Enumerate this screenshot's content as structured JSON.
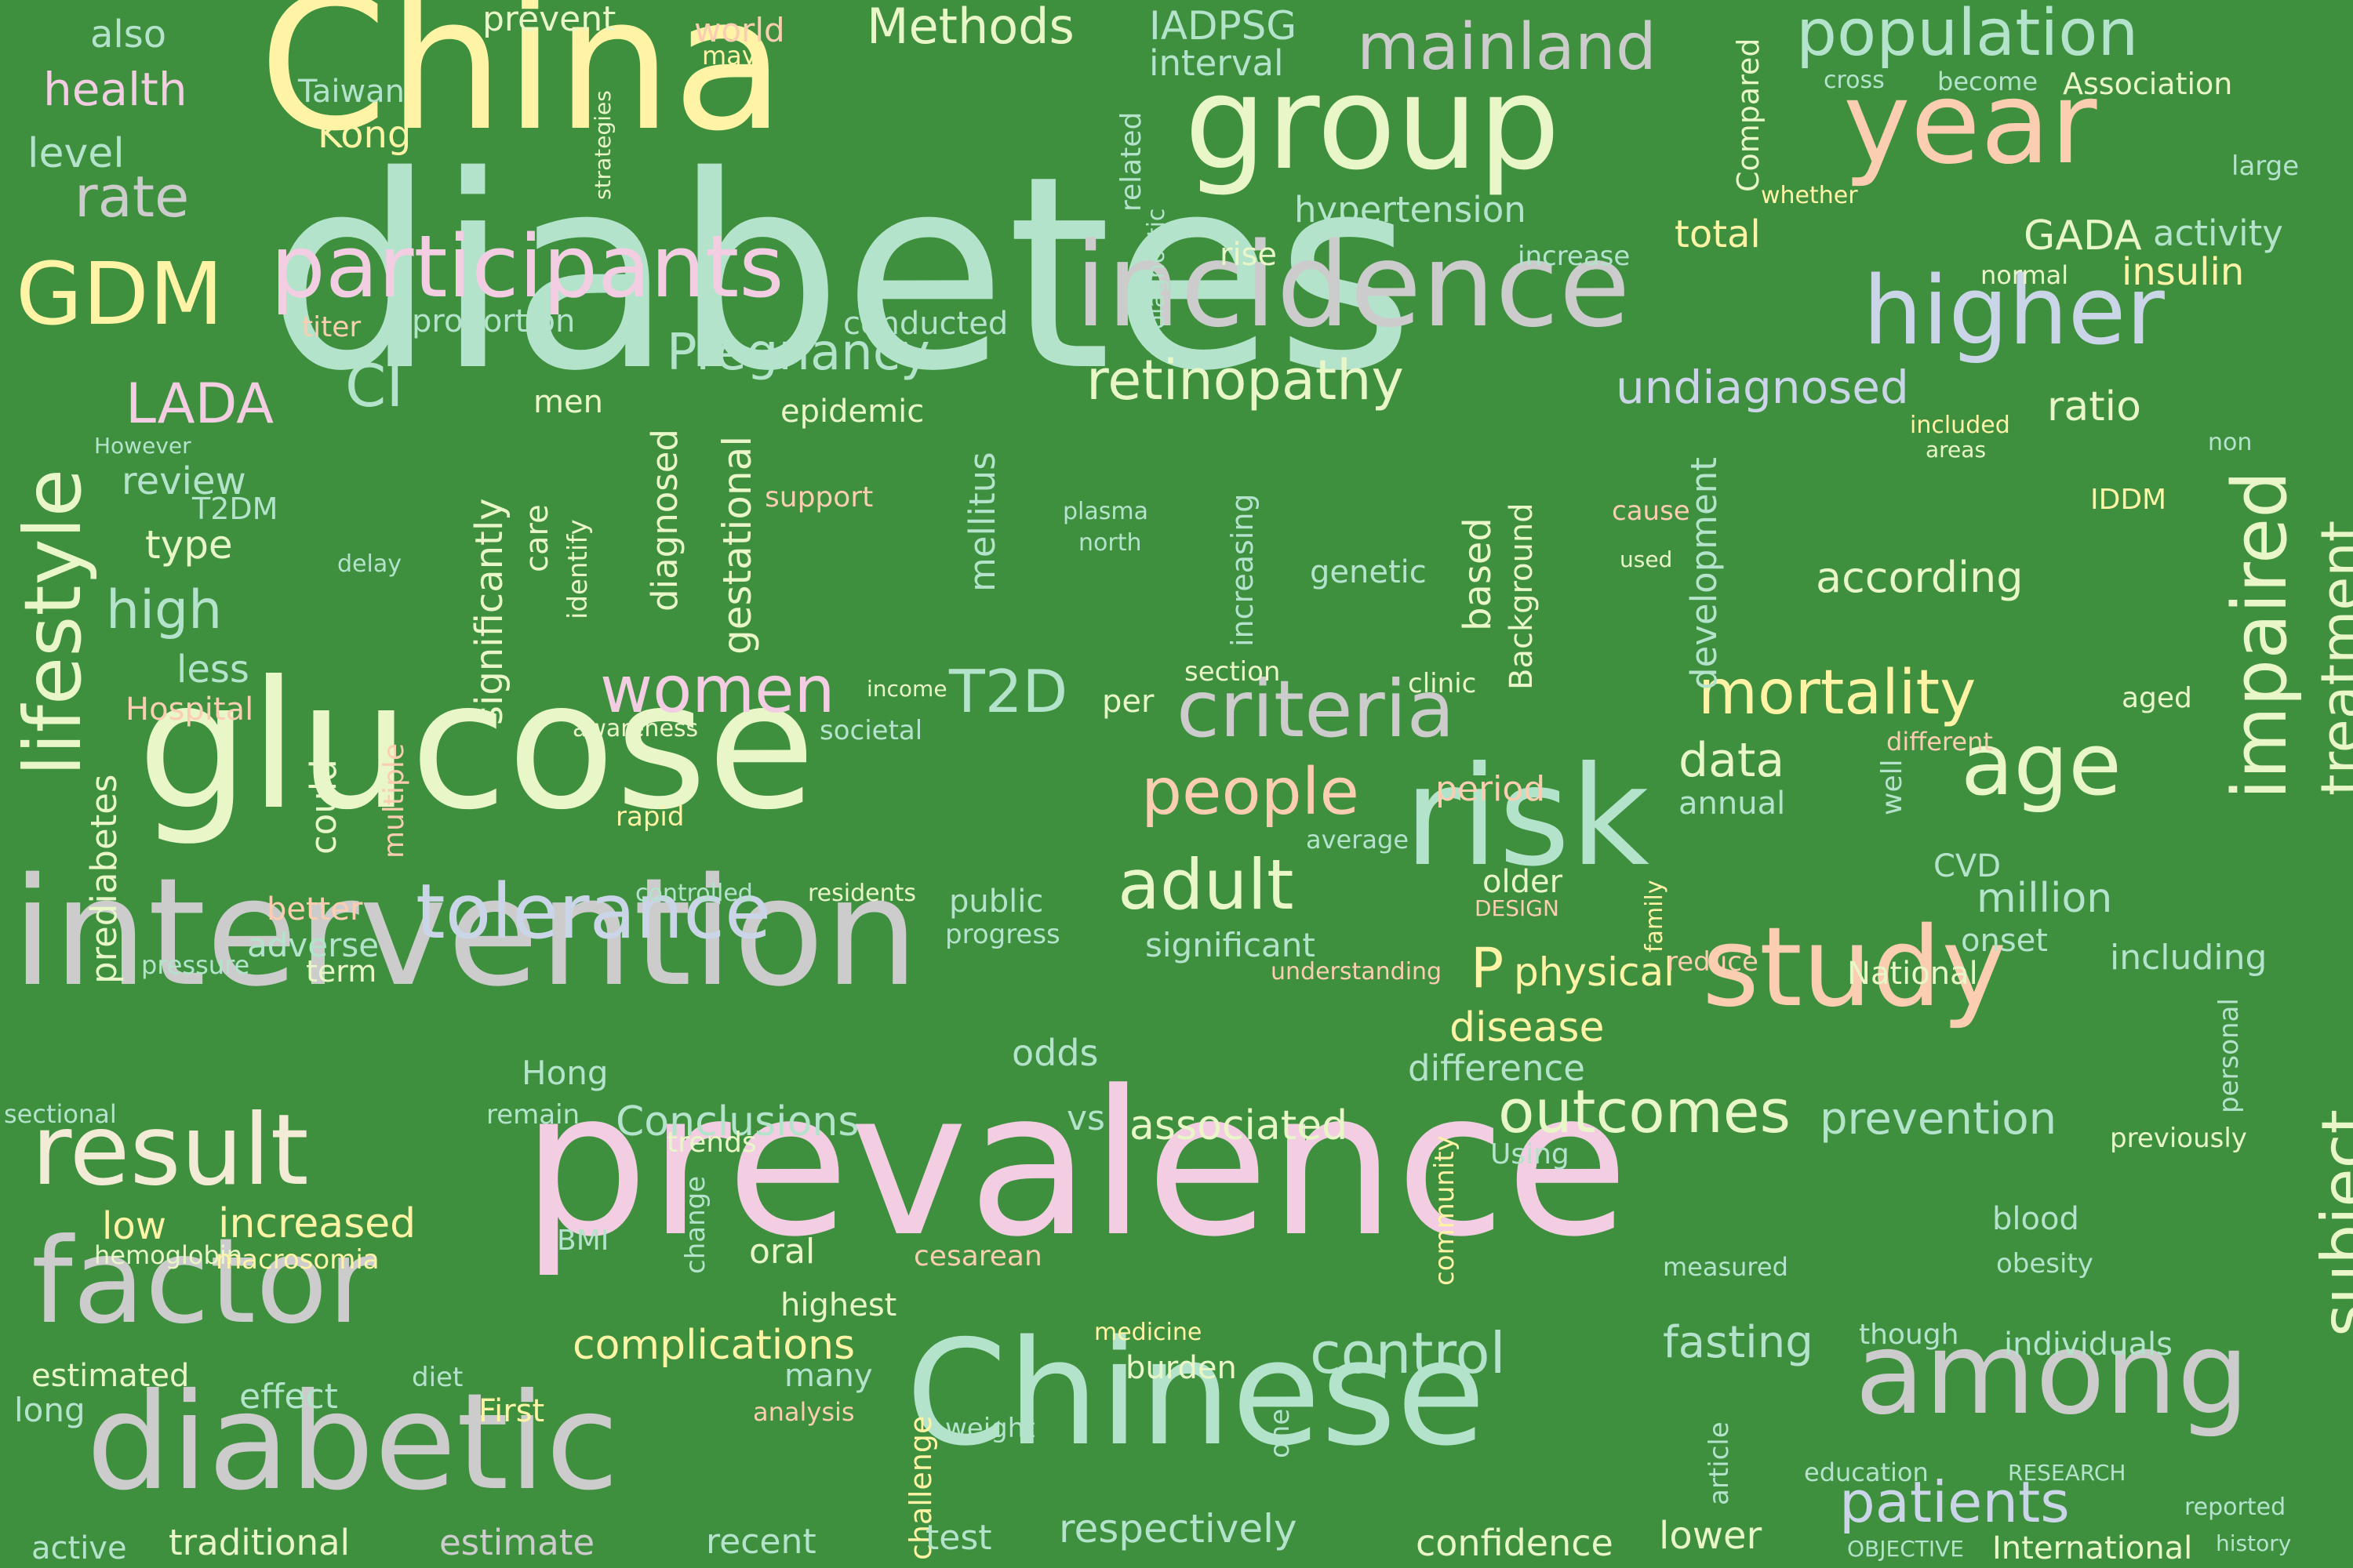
{
  "background_color": "#3e8f3e",
  "words": [
    {
      "id": "diabetes",
      "text": "diabetes",
      "color": "#b4e3cc"
    },
    {
      "id": "prevalence",
      "text": "prevalence",
      "color": "#f3cde2"
    },
    {
      "id": "china",
      "text": "China",
      "color": "#fff4a6"
    },
    {
      "id": "glucose",
      "text": "glucose",
      "color": "#e9f6c8"
    },
    {
      "id": "intervention",
      "text": "intervention",
      "color": "#cccccc"
    },
    {
      "id": "chinese",
      "text": "Chinese",
      "color": "#b4e3cc"
    },
    {
      "id": "risk",
      "text": "risk",
      "color": "#b4e3cc"
    },
    {
      "id": "group",
      "text": "group",
      "color": "#e9f6c8"
    },
    {
      "id": "year",
      "text": "year",
      "color": "#fbceb1"
    },
    {
      "id": "incidence",
      "text": "incidence",
      "color": "#cccccc"
    },
    {
      "id": "diabetic",
      "text": "diabetic",
      "color": "#cccccc"
    },
    {
      "id": "factor",
      "text": "factor",
      "color": "#cccccc"
    },
    {
      "id": "study",
      "text": "study",
      "color": "#fbceb1"
    },
    {
      "id": "among",
      "text": "among",
      "color": "#cccccc"
    },
    {
      "id": "participants",
      "text": "participants",
      "color": "#f3cde2"
    },
    {
      "id": "higher",
      "text": "higher",
      "color": "#cbd5e8"
    },
    {
      "id": "result",
      "text": "result",
      "color": "#f2ebd6"
    },
    {
      "id": "gdm",
      "text": "GDM",
      "color": "#fff4a6"
    },
    {
      "id": "population",
      "text": "population",
      "color": "#b4e3cc"
    },
    {
      "id": "mainland",
      "text": "mainland",
      "color": "#cccccc"
    },
    {
      "id": "age",
      "text": "age",
      "color": "#e9f6c8"
    },
    {
      "id": "criteria",
      "text": "criteria",
      "color": "#cccccc"
    },
    {
      "id": "tolerance",
      "text": "tolerance",
      "color": "#cbd5e8"
    },
    {
      "id": "lifestyle",
      "text": "lifestyle",
      "color": "#e9f6c8"
    },
    {
      "id": "impaired",
      "text": "impaired",
      "color": "#e9f6c8"
    },
    {
      "id": "mortality",
      "text": "mortality",
      "color": "#fff4a6"
    },
    {
      "id": "outcomes",
      "text": "outcomes",
      "color": "#e9f6c8"
    },
    {
      "id": "people",
      "text": "people",
      "color": "#fbceb1"
    },
    {
      "id": "adult",
      "text": "adult",
      "color": "#e9f6c8"
    },
    {
      "id": "control",
      "text": "control",
      "color": "#b4e3cc"
    },
    {
      "id": "patients",
      "text": "patients",
      "color": "#cbd5e8"
    },
    {
      "id": "subject",
      "text": "subject",
      "color": "#e9f6c8"
    },
    {
      "id": "treatment",
      "text": "treatment",
      "color": "#e9f6c8"
    },
    {
      "id": "retinopathy",
      "text": "retinopathy",
      "color": "#e9f6c8"
    },
    {
      "id": "women",
      "text": "women",
      "color": "#f3cde2"
    },
    {
      "id": "undiagnosed",
      "text": "undiagnosed",
      "color": "#cbd5e8"
    },
    {
      "id": "pregnancy",
      "text": "Pregnancy",
      "color": "#b4e3cc"
    },
    {
      "id": "lada",
      "text": "LADA",
      "color": "#f3cde2"
    },
    {
      "id": "rate",
      "text": "rate",
      "color": "#cccccc"
    },
    {
      "id": "t2d",
      "text": "T2D",
      "color": "#b4e3cc"
    },
    {
      "id": "complications",
      "text": "complications",
      "color": "#fff4a6"
    },
    {
      "id": "fasting",
      "text": "fasting",
      "color": "#b4e3cc"
    },
    {
      "id": "prevention",
      "text": "prevention",
      "color": "#b4e3cc"
    },
    {
      "id": "respectively",
      "text": "respectively",
      "color": "#b4e3cc"
    },
    {
      "id": "traditional",
      "text": "traditional",
      "color": "#e9f6c8"
    },
    {
      "id": "estimate",
      "text": "estimate",
      "color": "#cccccc"
    },
    {
      "id": "confidence",
      "text": "confidence",
      "color": "#e9f6c8"
    },
    {
      "id": "lower",
      "text": "lower",
      "color": "#e9f6c8"
    },
    {
      "id": "increased",
      "text": "increased",
      "color": "#fff4a6"
    },
    {
      "id": "methods",
      "text": "Methods",
      "color": "#e9f6c8"
    },
    {
      "id": "associated",
      "text": "associated",
      "color": "#e9f6c8"
    },
    {
      "id": "conclusions",
      "text": "Conclusions",
      "color": "#b4e3cc"
    },
    {
      "id": "high",
      "text": "high",
      "color": "#b4e3cc"
    },
    {
      "id": "data",
      "text": "data",
      "color": "#e9f6c8"
    },
    {
      "id": "according",
      "text": "according",
      "color": "#e9f6c8"
    },
    {
      "id": "hypertension",
      "text": "hypertension",
      "color": "#b4e3cc"
    },
    {
      "id": "million",
      "text": "million",
      "color": "#b4e3cc"
    },
    {
      "id": "disease",
      "text": "disease",
      "color": "#fff4a6"
    },
    {
      "id": "difference",
      "text": "difference",
      "color": "#b4e3cc"
    },
    {
      "id": "physical",
      "text": "physical",
      "color": "#fff4a6"
    },
    {
      "id": "p-value",
      "text": "P",
      "color": "#fff4a6"
    },
    {
      "id": "ci",
      "text": "CI",
      "color": "#b4e3cc"
    },
    {
      "id": "significantly",
      "text": "significantly",
      "color": "#e9f6c8"
    },
    {
      "id": "diagnosed",
      "text": "diagnosed",
      "color": "#e9f6c8"
    },
    {
      "id": "gestational",
      "text": "gestational",
      "color": "#e9f6c8"
    },
    {
      "id": "prediabetes",
      "text": "prediabetes",
      "color": "#e9f6c8"
    },
    {
      "id": "mellitus",
      "text": "mellitus",
      "color": "#b4e3cc"
    },
    {
      "id": "development",
      "text": "development",
      "color": "#b4e3cc"
    },
    {
      "id": "background",
      "text": "Background",
      "color": "#e9f6c8"
    },
    {
      "id": "increasing",
      "text": "increasing",
      "color": "#b4e3cc"
    },
    {
      "id": "based",
      "text": "based",
      "color": "#e9f6c8"
    },
    {
      "id": "ratio",
      "text": "ratio",
      "color": "#e9f6c8"
    },
    {
      "id": "activity",
      "text": "activity",
      "color": "#b4e3cc"
    },
    {
      "id": "gada",
      "text": "GADA",
      "color": "#e9f6c8"
    },
    {
      "id": "insulin",
      "text": "insulin",
      "color": "#fff4a6"
    },
    {
      "id": "total",
      "text": "total",
      "color": "#fff4a6"
    },
    {
      "id": "iadpsg",
      "text": "IADPSG",
      "color": "#b4e3cc"
    },
    {
      "id": "interval",
      "text": "interval",
      "color": "#b4e3cc"
    },
    {
      "id": "also",
      "text": "also",
      "color": "#b4e3cc"
    },
    {
      "id": "health",
      "text": "health",
      "color": "#f3cde2"
    },
    {
      "id": "level",
      "text": "level",
      "color": "#b4e3cc"
    },
    {
      "id": "taiwan",
      "text": "Taiwan",
      "color": "#b4e3cc"
    },
    {
      "id": "kong-top",
      "text": "Kong",
      "color": "#fff4a6"
    },
    {
      "id": "prevent",
      "text": "prevent",
      "color": "#e9f6c8"
    },
    {
      "id": "world",
      "text": "world",
      "color": "#fbceb1"
    },
    {
      "id": "may",
      "text": "may",
      "color": "#fff4a6"
    },
    {
      "id": "proportion",
      "text": "proportion",
      "color": "#b4e3cc"
    },
    {
      "id": "titer",
      "text": "titer",
      "color": "#fbceb1"
    },
    {
      "id": "conducted",
      "text": "conducted",
      "color": "#b4e3cc"
    },
    {
      "id": "epidemic",
      "text": "epidemic",
      "color": "#e9f6c8"
    },
    {
      "id": "men",
      "text": "men",
      "color": "#e9f6c8"
    },
    {
      "id": "review",
      "text": "review",
      "color": "#b4e3cc"
    },
    {
      "id": "t2dm",
      "text": "T2DM",
      "color": "#b4e3cc"
    },
    {
      "id": "type",
      "text": "type",
      "color": "#e9f6c8"
    },
    {
      "id": "however",
      "text": "However",
      "color": "#b4e3cc"
    },
    {
      "id": "less",
      "text": "less",
      "color": "#b4e3cc"
    },
    {
      "id": "hospital",
      "text": "Hospital",
      "color": "#fbceb1"
    },
    {
      "id": "could",
      "text": "could",
      "color": "#e9f6c8"
    },
    {
      "id": "multiple",
      "text": "multiple",
      "color": "#fbceb1"
    },
    {
      "id": "better",
      "text": "better",
      "color": "#fbceb1"
    },
    {
      "id": "adverse",
      "text": "adverse",
      "color": "#b4e3cc"
    },
    {
      "id": "term",
      "text": "term",
      "color": "#e9f6c8"
    },
    {
      "id": "pressure",
      "text": "pressure",
      "color": "#b4e3cc"
    },
    {
      "id": "support",
      "text": "support",
      "color": "#fbceb1"
    },
    {
      "id": "care",
      "text": "care",
      "color": "#e9f6c8"
    },
    {
      "id": "identify",
      "text": "identify",
      "color": "#e9f6c8"
    },
    {
      "id": "delay",
      "text": "delay",
      "color": "#b4e3cc"
    },
    {
      "id": "plasma",
      "text": "plasma",
      "color": "#b4e3cc"
    },
    {
      "id": "north",
      "text": "north",
      "color": "#b4e3cc"
    },
    {
      "id": "income",
      "text": "income",
      "color": "#e9f6c8"
    },
    {
      "id": "awareness",
      "text": "awareness",
      "color": "#e9f6c8"
    },
    {
      "id": "societal",
      "text": "societal",
      "color": "#b4e3cc"
    },
    {
      "id": "rapid",
      "text": "rapid",
      "color": "#fff4a6"
    },
    {
      "id": "controlled",
      "text": "controlled",
      "color": "#b4e3cc"
    },
    {
      "id": "residents",
      "text": "residents",
      "color": "#e9f6c8"
    },
    {
      "id": "public",
      "text": "public",
      "color": "#b4e3cc"
    },
    {
      "id": "progress",
      "text": "progress",
      "color": "#b4e3cc"
    },
    {
      "id": "significant",
      "text": "significant",
      "color": "#b4e3cc"
    },
    {
      "id": "per",
      "text": "per",
      "color": "#e9f6c8"
    },
    {
      "id": "section",
      "text": "section",
      "color": "#e9f6c8"
    },
    {
      "id": "clinic",
      "text": "clinic",
      "color": "#e9f6c8"
    },
    {
      "id": "genetic",
      "text": "genetic",
      "color": "#b4e3cc"
    },
    {
      "id": "period",
      "text": "period",
      "color": "#fbceb1"
    },
    {
      "id": "annual",
      "text": "annual",
      "color": "#b4e3cc"
    },
    {
      "id": "average",
      "text": "average",
      "color": "#b4e3cc"
    },
    {
      "id": "older",
      "text": "older",
      "color": "#e9f6c8"
    },
    {
      "id": "design",
      "text": "DESIGN",
      "color": "#fbceb1"
    },
    {
      "id": "family",
      "text": "family",
      "color": "#fff4a6"
    },
    {
      "id": "well",
      "text": "well",
      "color": "#b4e3cc"
    },
    {
      "id": "cvd",
      "text": "CVD",
      "color": "#b4e3cc"
    },
    {
      "id": "onset",
      "text": "onset",
      "color": "#b4e3cc"
    },
    {
      "id": "reduce",
      "text": "reduce",
      "color": "#fbceb1"
    },
    {
      "id": "understanding",
      "text": "understanding",
      "color": "#fbceb1"
    },
    {
      "id": "national",
      "text": "National",
      "color": "#e9f6c8"
    },
    {
      "id": "including",
      "text": "including",
      "color": "#b4e3cc"
    },
    {
      "id": "odds",
      "text": "odds",
      "color": "#b4e3cc"
    },
    {
      "id": "hong",
      "text": "Hong",
      "color": "#b4e3cc"
    },
    {
      "id": "remain",
      "text": "remain",
      "color": "#b4e3cc"
    },
    {
      "id": "sectional",
      "text": "sectional",
      "color": "#b4e3cc"
    },
    {
      "id": "trends",
      "text": "trends",
      "color": "#e9f6c8"
    },
    {
      "id": "vs",
      "text": "vs",
      "color": "#b4e3cc"
    },
    {
      "id": "using",
      "text": "Using",
      "color": "#b4e3cc"
    },
    {
      "id": "community",
      "text": "community",
      "color": "#fff4a6"
    },
    {
      "id": "change",
      "text": "change",
      "color": "#b4e3cc"
    },
    {
      "id": "low",
      "text": "low",
      "color": "#fff4a6"
    },
    {
      "id": "hemoglobin",
      "text": "hemoglobin",
      "color": "#e9f6c8"
    },
    {
      "id": "macrosomia",
      "text": "macrosomia",
      "color": "#fff4a6"
    },
    {
      "id": "bmi",
      "text": "BMI",
      "color": "#b4e3cc"
    },
    {
      "id": "oral",
      "text": "oral",
      "color": "#e9f6c8"
    },
    {
      "id": "cesarean",
      "text": "cesarean",
      "color": "#fbceb1"
    },
    {
      "id": "highest",
      "text": "highest",
      "color": "#e9f6c8"
    },
    {
      "id": "blood",
      "text": "blood",
      "color": "#b4e3cc"
    },
    {
      "id": "obesity",
      "text": "obesity",
      "color": "#b4e3cc"
    },
    {
      "id": "measured",
      "text": "measured",
      "color": "#b4e3cc"
    },
    {
      "id": "personal",
      "text": "personal",
      "color": "#b4e3cc"
    },
    {
      "id": "previously",
      "text": "previously",
      "color": "#e9f6c8"
    },
    {
      "id": "medicine",
      "text": "medicine",
      "color": "#fff4a6"
    },
    {
      "id": "burden",
      "text": "burden",
      "color": "#e9f6c8"
    },
    {
      "id": "estimated",
      "text": "estimated",
      "color": "#e9f6c8"
    },
    {
      "id": "diet",
      "text": "diet",
      "color": "#b4e3cc"
    },
    {
      "id": "effect",
      "text": "effect",
      "color": "#b4e3cc"
    },
    {
      "id": "long",
      "text": "long",
      "color": "#b4e3cc"
    },
    {
      "id": "first",
      "text": "First",
      "color": "#fff4a6"
    },
    {
      "id": "many",
      "text": "many",
      "color": "#b4e3cc"
    },
    {
      "id": "analysis",
      "text": "analysis",
      "color": "#fbceb1"
    },
    {
      "id": "challenge",
      "text": "challenge",
      "color": "#fff4a6"
    },
    {
      "id": "weight",
      "text": "weight",
      "color": "#b4e3cc"
    },
    {
      "id": "one",
      "text": "one",
      "color": "#b4e3cc"
    },
    {
      "id": "though",
      "text": "though",
      "color": "#b4e3cc"
    },
    {
      "id": "individuals",
      "text": "individuals",
      "color": "#b4e3cc"
    },
    {
      "id": "article",
      "text": "article",
      "color": "#b4e3cc"
    },
    {
      "id": "education",
      "text": "education",
      "color": "#b4e3cc"
    },
    {
      "id": "research",
      "text": "RESEARCH",
      "color": "#b4e3cc"
    },
    {
      "id": "reported",
      "text": "reported",
      "color": "#b4e3cc"
    },
    {
      "id": "history",
      "text": "history",
      "color": "#b4e3cc"
    },
    {
      "id": "objective",
      "text": "OBJECTIVE",
      "color": "#b4e3cc"
    },
    {
      "id": "international",
      "text": "International",
      "color": "#e9f6c8"
    },
    {
      "id": "test",
      "text": "test",
      "color": "#b4e3cc"
    },
    {
      "id": "recent",
      "text": "recent",
      "color": "#b4e3cc"
    },
    {
      "id": "active",
      "text": "active",
      "color": "#b4e3cc"
    },
    {
      "id": "cross",
      "text": "cross",
      "color": "#b4e3cc"
    },
    {
      "id": "become",
      "text": "become",
      "color": "#b4e3cc"
    },
    {
      "id": "association",
      "text": "Association",
      "color": "#e9f6c8"
    },
    {
      "id": "large",
      "text": "large",
      "color": "#b4e3cc"
    },
    {
      "id": "whether",
      "text": "whether",
      "color": "#fff4a6"
    },
    {
      "id": "compared",
      "text": "Compared",
      "color": "#e9f6c8"
    },
    {
      "id": "related",
      "text": "related",
      "color": "#b4e3cc"
    },
    {
      "id": "diagnostic",
      "text": "diagnostic",
      "color": "#b4e3cc"
    },
    {
      "id": "strategies",
      "text": "strategies",
      "color": "#e9f6c8"
    },
    {
      "id": "rise",
      "text": "rise",
      "color": "#e9f6c8"
    },
    {
      "id": "increase",
      "text": "increase",
      "color": "#b4e3cc"
    },
    {
      "id": "normal",
      "text": "normal",
      "color": "#e9f6c8"
    },
    {
      "id": "included",
      "text": "included",
      "color": "#fff4a6"
    },
    {
      "id": "areas",
      "text": "areas",
      "color": "#e9f6c8"
    },
    {
      "id": "non",
      "text": "non",
      "color": "#b4e3cc"
    },
    {
      "id": "iddm",
      "text": "IDDM",
      "color": "#fff4a6"
    },
    {
      "id": "cause",
      "text": "cause",
      "color": "#fbceb1"
    },
    {
      "id": "used",
      "text": "used",
      "color": "#e9f6c8"
    },
    {
      "id": "aged",
      "text": "aged",
      "color": "#e9f6c8"
    },
    {
      "id": "different",
      "text": "different",
      "color": "#fbceb1"
    }
  ]
}
